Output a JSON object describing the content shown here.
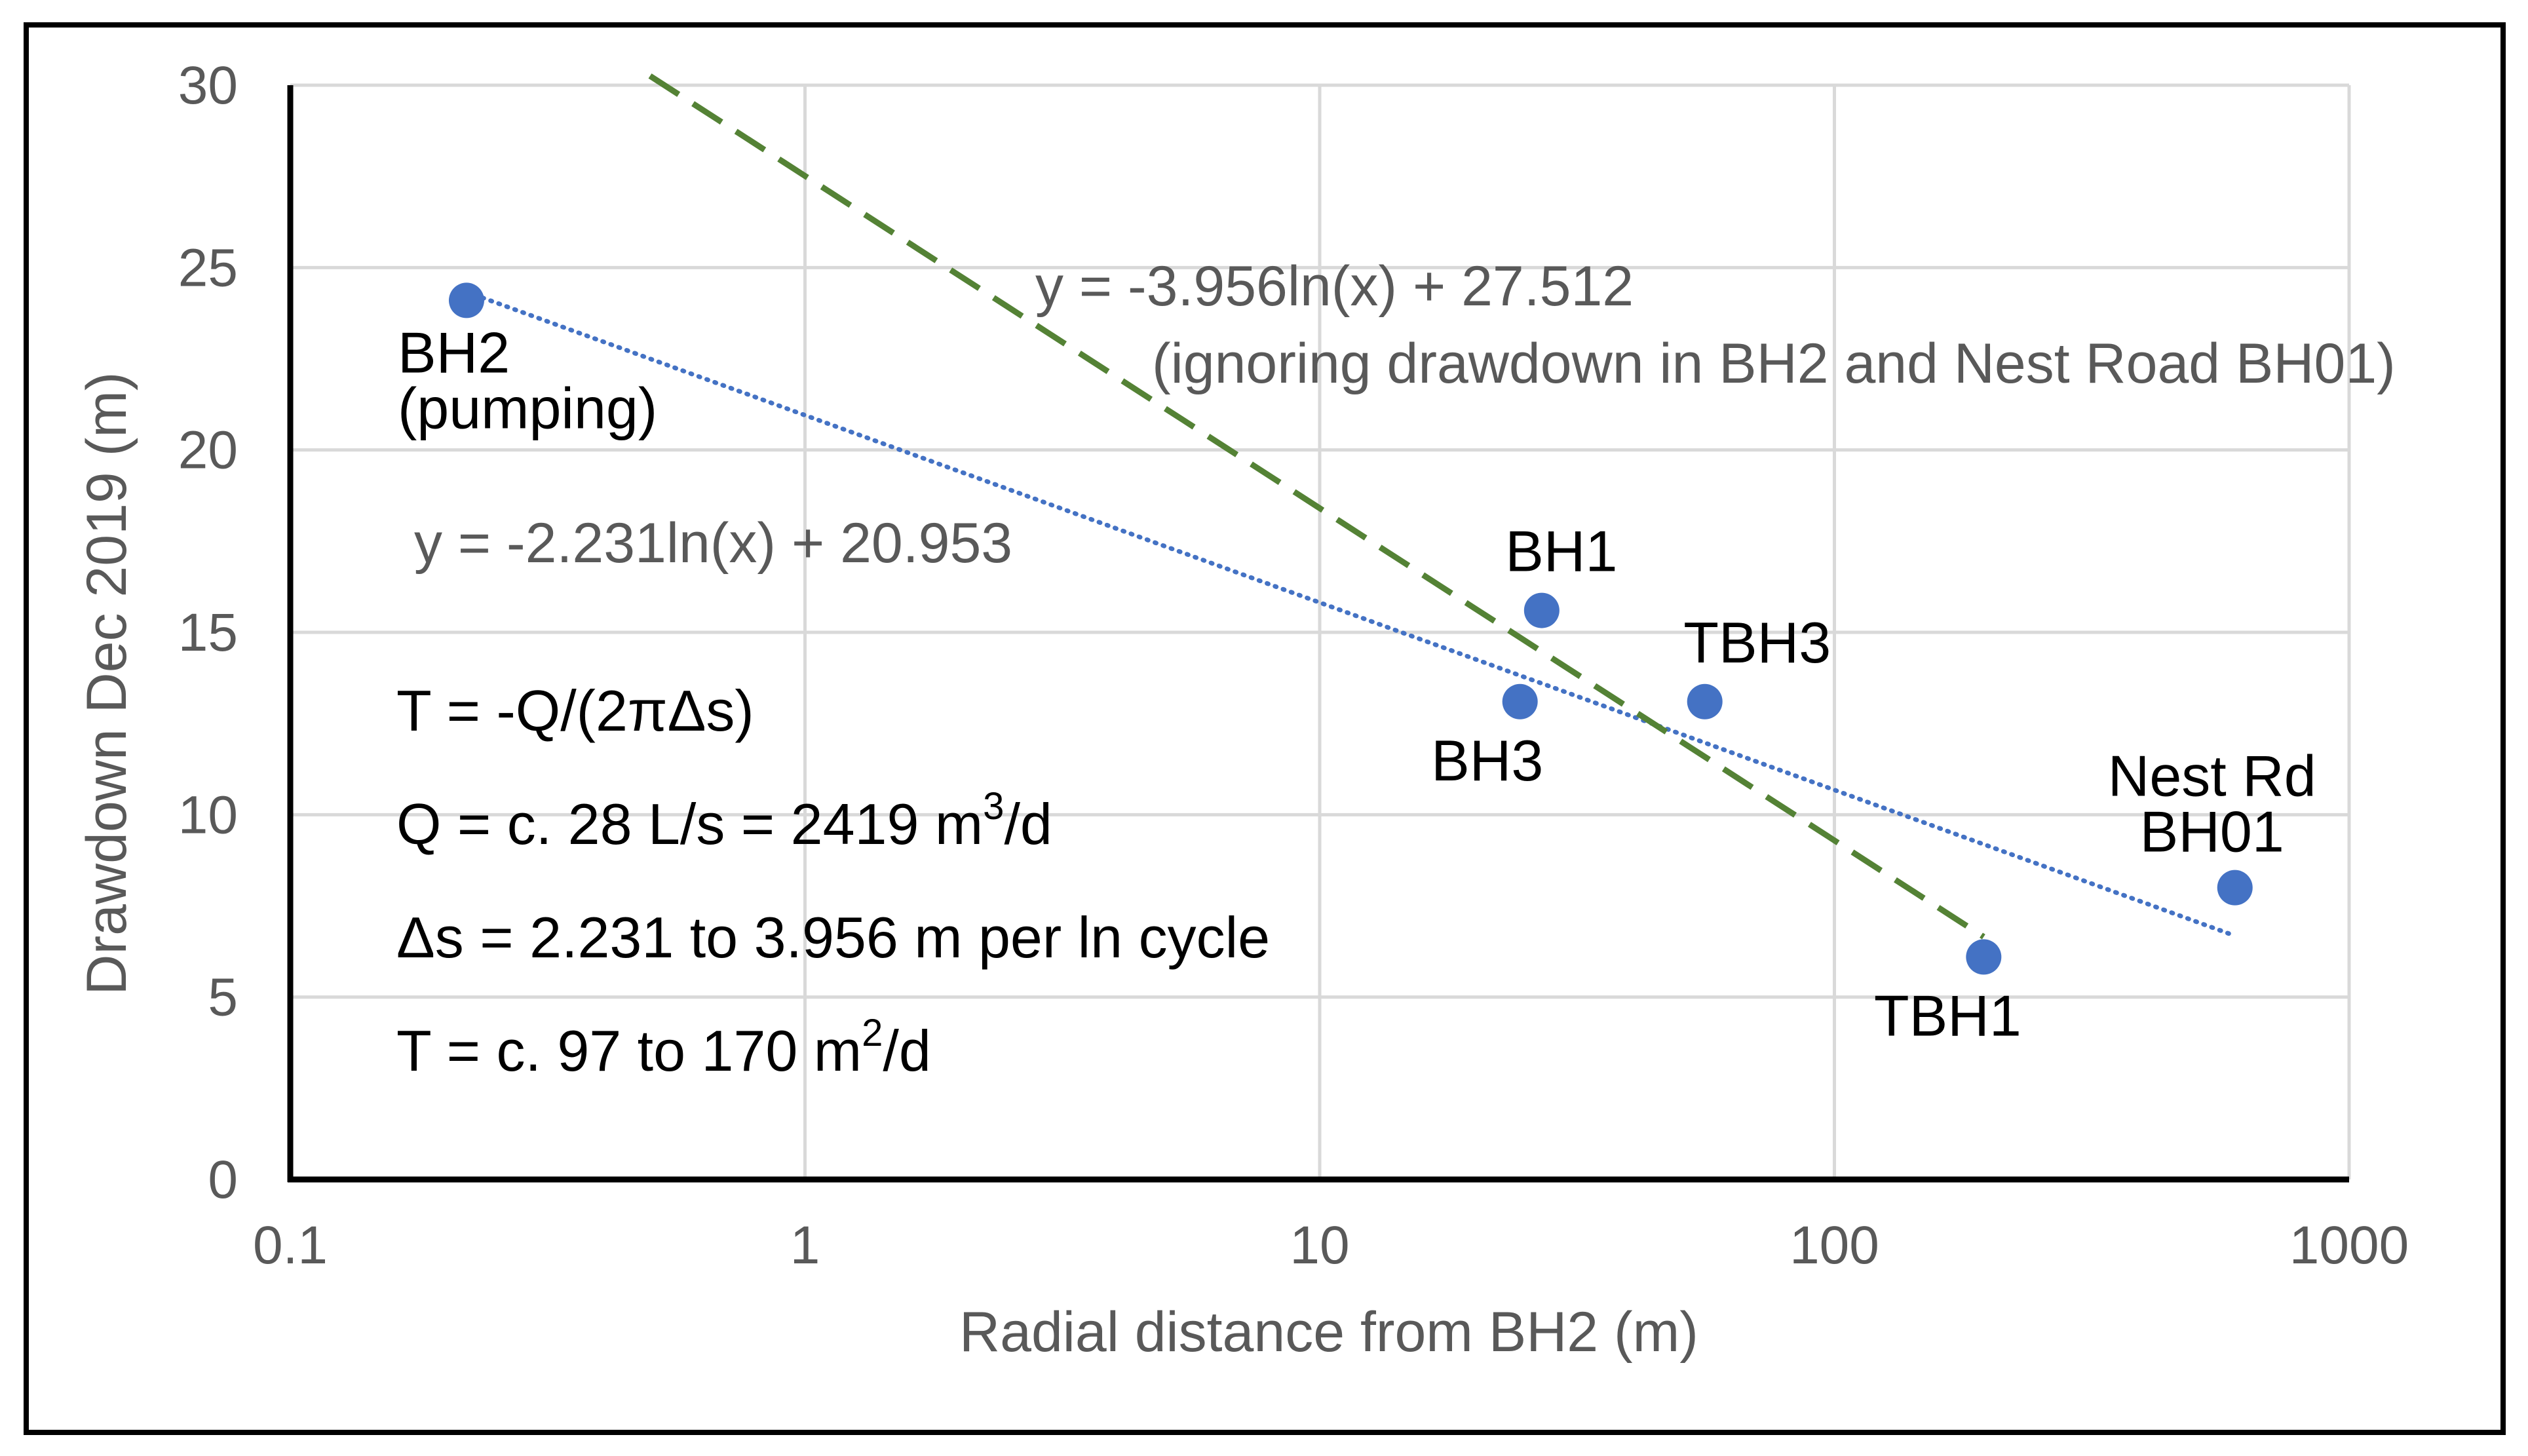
{
  "chart_data": {
    "type": "scatter",
    "x_scale": "log",
    "xlabel": "Radial distance from BH2 (m)",
    "ylabel": "Drawdown Dec 2019 (m)",
    "xlim": [
      0.1,
      1000
    ],
    "ylim": [
      0,
      30
    ],
    "x_ticks": [
      0.1,
      1,
      10,
      100,
      1000
    ],
    "x_tick_labels": [
      "0.1",
      "1",
      "10",
      "100",
      "1000"
    ],
    "y_ticks": [
      0,
      5,
      10,
      15,
      20,
      25,
      30
    ],
    "y_tick_labels": [
      "0",
      "5",
      "10",
      "15",
      "20",
      "25",
      "30"
    ],
    "grid": true,
    "colors": {
      "points": "#4472c4",
      "trend_all": "#4472c4",
      "trend_subset": "#548235",
      "axis": "#000000",
      "grid": "#d9d9d9",
      "tick_text": "#595959"
    },
    "points": [
      {
        "name": "BH2",
        "label_lines": [
          "BH2",
          "(pumping)"
        ],
        "x": 0.22,
        "y": 24.1
      },
      {
        "name": "BH1",
        "label_lines": [
          "BH1"
        ],
        "x": 27,
        "y": 15.6
      },
      {
        "name": "BH3",
        "label_lines": [
          "BH3"
        ],
        "x": 24.5,
        "y": 13.1
      },
      {
        "name": "TBH3",
        "label_lines": [
          "TBH3"
        ],
        "x": 56,
        "y": 13.1
      },
      {
        "name": "TBH1",
        "label_lines": [
          "TBH1"
        ],
        "x": 195,
        "y": 6.1
      },
      {
        "name": "Nest Rd BH01",
        "label_lines": [
          "Nest Rd",
          "BH01"
        ],
        "x": 600,
        "y": 8.0
      }
    ],
    "trendlines": [
      {
        "name": "all-points-fit",
        "style": "dotted",
        "slope": -2.231,
        "intercept": 20.953,
        "x_range": [
          0.22,
          600
        ],
        "equation": "y = -2.231ln(x) + 20.953"
      },
      {
        "name": "subset-fit",
        "style": "dashed",
        "slope": -3.956,
        "intercept": 27.512,
        "x_range": [
          0.5,
          195
        ],
        "equation": "y = -3.956ln(x) + 27.512",
        "note": "(ignoring drawdown in BH2 and Nest Road BH01)"
      }
    ]
  },
  "calc_notes": {
    "line1": "T = -Q/(2πΔs)",
    "line2_main": "Q = c. 28 L/s = 2419 m",
    "line2_sup": "3",
    "line2_end": "/d",
    "line3": "Δs = 2.231 to 3.956 m per ln cycle",
    "line4_main": "T = c. 97 to 170 m",
    "line4_sup": "2",
    "line4_end": "/d"
  }
}
